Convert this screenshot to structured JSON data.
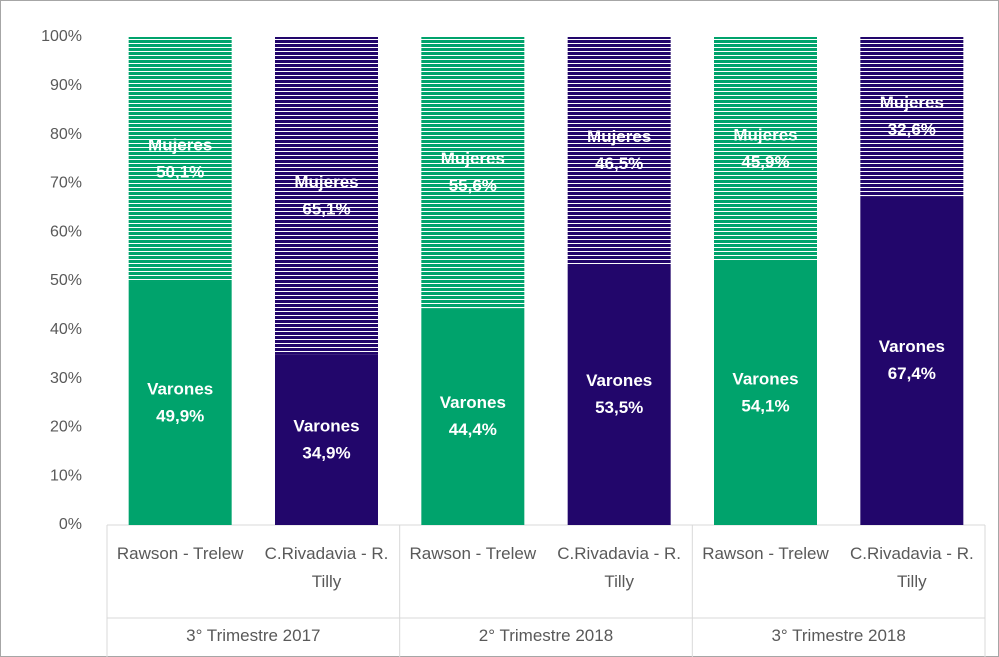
{
  "chart_data": {
    "type": "stacked_bar_100",
    "categories": [
      "Rawson - Trelew",
      "C.Rivadavia - R. Tilly",
      "Rawson - Trelew",
      "C.Rivadavia - R. Tilly",
      "Rawson - Trelew",
      "C.Rivadavia - R. Tilly"
    ],
    "groups": [
      "3° Trimestre 2017",
      "2° Trimestre 2018",
      "3° Trimestre 2018"
    ],
    "bar_colors": [
      "#00a36c",
      "#22066b",
      "#00a36c",
      "#22066b",
      "#00a36c",
      "#22066b"
    ],
    "series": [
      {
        "name": "Varones",
        "fill": "solid",
        "values": [
          49.9,
          34.9,
          44.4,
          53.5,
          54.1,
          67.4
        ],
        "value_labels": [
          "49,9%",
          "34,9%",
          "44,4%",
          "53,5%",
          "54,1%",
          "67,4%"
        ]
      },
      {
        "name": "Mujeres",
        "fill": "hatch",
        "values": [
          50.1,
          65.1,
          55.6,
          46.5,
          45.9,
          32.6
        ],
        "value_labels": [
          "50,1%",
          "65,1%",
          "55,6%",
          "46,5%",
          "45,9%",
          "32,6%"
        ]
      }
    ],
    "ylim": [
      0,
      100
    ],
    "yticks": [
      {
        "value": 0,
        "label": "0%"
      },
      {
        "value": 10,
        "label": "10%"
      },
      {
        "value": 20,
        "label": "20%"
      },
      {
        "value": 30,
        "label": "30%"
      },
      {
        "value": 40,
        "label": "40%"
      },
      {
        "value": 50,
        "label": "50%"
      },
      {
        "value": 60,
        "label": "60%"
      },
      {
        "value": 70,
        "label": "70%"
      },
      {
        "value": 80,
        "label": "80%"
      },
      {
        "value": 90,
        "label": "90%"
      },
      {
        "value": 100,
        "label": "100%"
      }
    ]
  }
}
